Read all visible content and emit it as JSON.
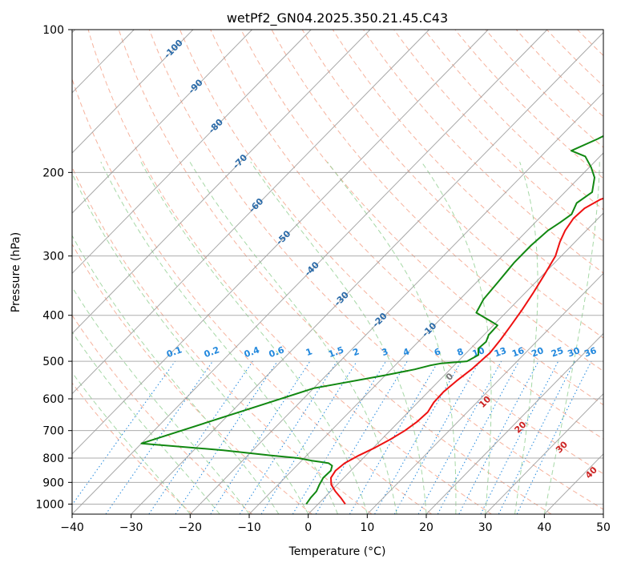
{
  "chart_data": {
    "type": "line",
    "title": "wetPf2_GN04.2025.350.21.45.C43",
    "xlabel": "Temperature (°C)",
    "ylabel": "Pressure (hPa)",
    "xlim": [
      -40,
      50
    ],
    "ylim": [
      1050,
      100
    ],
    "y_scale": "log",
    "grid": true,
    "x_ticks": [
      -40,
      -30,
      -20,
      -10,
      0,
      10,
      20,
      30,
      40,
      50
    ],
    "x_tick_labels": [
      "−40",
      "−30",
      "−20",
      "−10",
      "0",
      "10",
      "20",
      "30",
      "40",
      "50"
    ],
    "y_ticks": [
      100,
      200,
      300,
      400,
      500,
      600,
      700,
      800,
      900,
      1000
    ],
    "y_tick_labels": [
      "100",
      "200",
      "300",
      "400",
      "500",
      "600",
      "700",
      "800",
      "900",
      "1000"
    ],
    "colors": {
      "temperature": "#ee1111",
      "dewpoint": "#118811",
      "isotherm": "#999999",
      "dry_adiabat": "#f4a48c",
      "moist_adiabat": "#9cd49c",
      "mixing_ratio": "#2288dd",
      "isotherm_label": "#2a6aa8",
      "moist_label": "#cc2222",
      "zero_label": "#777777"
    },
    "series": [
      {
        "id": "temperature",
        "x": [
          4.6,
          2.8,
          0.8,
          -1.0,
          -2.2,
          -2.6,
          -2.3,
          -1.2,
          0.3,
          1.5,
          2.5,
          3.1,
          3.3,
          2.7,
          2.6,
          3.0,
          3.6,
          4.0,
          3.6,
          3.0,
          2.3,
          1.4,
          0.3,
          -1.0,
          -2.6,
          -3.6,
          -4.2,
          -4.0,
          -2.8,
          0.6,
          4.6,
          9.0,
          12.5,
          15.3,
          19.3,
          22.0,
          24.3,
          26.2,
          27.5,
          31.7,
          33.4
        ],
        "y": [
          1000,
          970,
          940,
          910,
          880,
          850,
          820,
          790,
          760,
          730,
          700,
          670,
          640,
          610,
          580,
          550,
          520,
          480,
          450,
          420,
          390,
          360,
          330,
          300,
          280,
          265,
          250,
          238,
          228,
          218,
          208,
          195,
          180,
          165,
          150,
          138,
          128,
          120,
          112,
          103,
          100
        ]
      },
      {
        "id": "dewpoint",
        "x": [
          -2.0,
          -2.3,
          -2.4,
          -3.0,
          -3.5,
          -3.4,
          -4.0,
          -5.0,
          -6.6,
          -8.3,
          -11.0,
          -16.0,
          -25.0,
          -40.0,
          -20.0,
          -10.0,
          -6.0,
          -4.0,
          -2.5,
          1.5,
          2.4,
          1.3,
          1.5,
          0.8,
          0.7,
          -1.5,
          -5.0,
          -6.0,
          -6.4,
          -6.9,
          -6.9,
          -6.5,
          -5.8,
          -5.2,
          -6.2,
          -5.4,
          -7.4,
          -9.7,
          -12.5,
          -15.8,
          -13.3,
          -8.8,
          -4.7,
          -3.1,
          -2.2,
          1.1
        ],
        "y": [
          1000,
          970,
          940,
          910,
          880,
          850,
          830,
          820,
          815,
          810,
          800,
          790,
          770,
          745,
          570,
          535,
          520,
          510,
          505,
          500,
          485,
          470,
          455,
          440,
          420,
          410,
          395,
          370,
          340,
          310,
          285,
          265,
          255,
          245,
          232,
          220,
          205,
          195,
          185,
          180,
          170,
          150,
          130,
          120,
          110,
          100
        ]
      }
    ],
    "isotherm_labels": [
      -100,
      -90,
      -80,
      -70,
      -60,
      -50,
      -40,
      -30,
      -20,
      -10
    ],
    "mixing_ratio_labels": [
      "0.1",
      "0.2",
      "0.4",
      "0.6",
      "1",
      "1.5",
      "2",
      "3",
      "4",
      "6",
      "8",
      "10",
      "13",
      "16",
      "20",
      "25",
      "30",
      "36"
    ],
    "moist_adiabat_labels": [
      "0",
      "10",
      "20",
      "30",
      "40"
    ]
  }
}
